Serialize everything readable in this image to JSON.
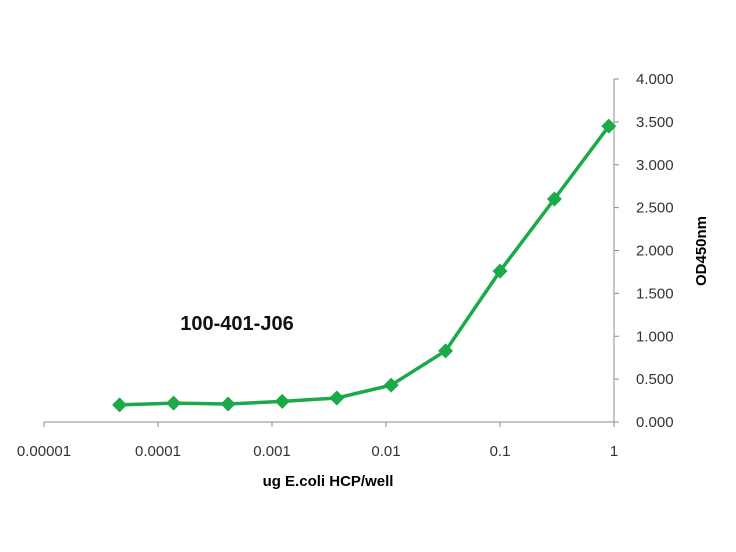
{
  "chart_data": {
    "type": "line",
    "annotation": "100-401-J06",
    "xlabel": "ug E.coli HCP/well",
    "ylabel": "OD450nm",
    "x_scale": "log",
    "xlim": [
      1e-05,
      1
    ],
    "ylim": [
      0,
      4
    ],
    "x_ticks": [
      "0.00001",
      "0.0001",
      "0.001",
      "0.01",
      "0.1",
      "1"
    ],
    "y_ticks": [
      "0.000",
      "0.500",
      "1.000",
      "1.500",
      "2.000",
      "2.500",
      "3.000",
      "3.500",
      "4.000"
    ],
    "grid": false,
    "legend": "none",
    "series_color": "#1aaa4a",
    "series": [
      {
        "x": [
          4.6e-05,
          0.000137,
          0.000412,
          0.00123,
          0.0037,
          0.0111,
          0.0333,
          0.1,
          0.3,
          0.9
        ],
        "values": [
          0.2,
          0.22,
          0.21,
          0.24,
          0.28,
          0.43,
          0.83,
          1.76,
          2.6,
          3.45
        ]
      }
    ]
  }
}
